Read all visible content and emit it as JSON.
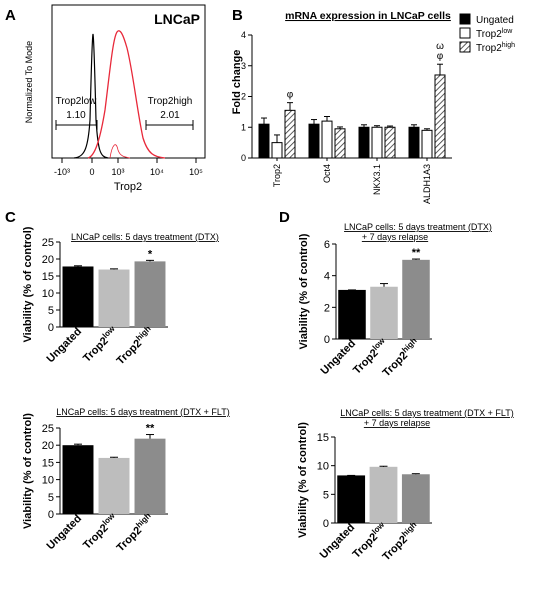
{
  "panels": {
    "A": {
      "letter": "A",
      "label": "LNCaP",
      "ylabel": "Normalized To Mode",
      "xlabel": "Trop2",
      "x_ticks": [
        "-10³",
        "0",
        "10³",
        "10⁴",
        "10⁵"
      ],
      "gates": [
        {
          "name": "Trop2low",
          "value": "1.10"
        },
        {
          "name": "Trop2high",
          "value": "2.01"
        }
      ]
    },
    "B": {
      "letter": "B",
      "title": "mRNA expression in LNCaP cells",
      "ylabel": "Fold change"
    },
    "C": {
      "letter": "C"
    },
    "D": {
      "letter": "D"
    }
  },
  "legend": {
    "base": [
      "Ungated",
      "Trop2",
      "Trop2"
    ],
    "sup": [
      "",
      "low",
      "high"
    ]
  },
  "bar_labels": {
    "base": [
      "Ungated",
      "Trop2",
      "Trop2"
    ],
    "sup": [
      "",
      "low",
      "high"
    ]
  },
  "colors": {
    "ungated": "#000000",
    "trop2low": "#ffffff",
    "trop2high_hatch": "#444444",
    "c_ungated": "#000000",
    "c_low": "#bdbdbd",
    "c_high": "#8c8c8c",
    "histogram_low": "#000000",
    "histogram_high": "#e8293a"
  },
  "chart_data": [
    {
      "id": "A",
      "type": "area",
      "title": "",
      "xlabel": "Trop2",
      "ylabel": "Normalized To Mode",
      "x_scale": "biexponential",
      "series": [
        {
          "name": "Trop2low",
          "x": [
            -300,
            -60,
            -20,
            0,
            20,
            60,
            200
          ],
          "y": [
            0,
            5,
            40,
            96,
            40,
            5,
            0
          ]
        },
        {
          "name": "Trop2high",
          "x": [
            -100,
            100,
            300,
            600,
            900,
            1200,
            2000,
            4000,
            8000,
            15000
          ],
          "y": [
            0,
            5,
            35,
            80,
            95,
            88,
            60,
            25,
            5,
            0
          ]
        }
      ],
      "annotations": [
        {
          "text": "Trop2low",
          "value": 1.1
        },
        {
          "text": "Trop2high",
          "value": 2.01
        }
      ]
    },
    {
      "id": "B",
      "type": "bar",
      "title": "mRNA expression in LNCaP cells",
      "categories": [
        "Trop2",
        "Oct4",
        "NKX3.1",
        "ALDH1A3"
      ],
      "series": [
        {
          "name": "Ungated",
          "values": [
            1.1,
            1.1,
            1.0,
            1.0
          ],
          "errors": [
            0.2,
            0.15,
            0.08,
            0.08
          ]
        },
        {
          "name": "Trop2low",
          "values": [
            0.5,
            1.2,
            1.0,
            0.9
          ],
          "errors": [
            0.25,
            0.15,
            0.05,
            0.05
          ]
        },
        {
          "name": "Trop2high",
          "values": [
            1.55,
            0.95,
            1.0,
            2.7
          ],
          "errors": [
            0.25,
            0.06,
            0.04,
            0.35
          ]
        }
      ],
      "ylabel": "Fold change",
      "ylim": [
        0,
        4
      ],
      "yticks": [
        0,
        1,
        2,
        3,
        4
      ],
      "significance": [
        {
          "category": "Trop2",
          "series": "Trop2high",
          "mark": "φ"
        },
        {
          "category": "ALDH1A3",
          "series": "Trop2high",
          "mark": "ω\nφ"
        }
      ]
    },
    {
      "id": "C1",
      "type": "bar",
      "title": "LNCaP cells: 5 days treatment (DTX)",
      "categories": [
        "Ungated",
        "Trop2low",
        "Trop2high"
      ],
      "values": [
        17.8,
        16.9,
        19.3
      ],
      "errors": [
        0.2,
        0.2,
        0.3
      ],
      "ylabel": "Viability (% of control)",
      "ylim": [
        0,
        25
      ],
      "yticks": [
        0,
        5,
        10,
        15,
        20,
        25
      ],
      "significance": [
        {
          "category": "Trop2high",
          "mark": "*"
        }
      ]
    },
    {
      "id": "C2",
      "type": "bar",
      "title": "LNCaP cells: 5 days treatment (DTX + FLT)",
      "categories": [
        "Ungated",
        "Trop2low",
        "Trop2high"
      ],
      "values": [
        20.0,
        16.3,
        21.9
      ],
      "errors": [
        0.3,
        0.2,
        1.2
      ],
      "ylabel": "Viability (% of control)",
      "ylim": [
        0,
        25
      ],
      "yticks": [
        0,
        5,
        10,
        15,
        20,
        25
      ],
      "significance": [
        {
          "category": "Trop2high",
          "mark": "**"
        }
      ]
    },
    {
      "id": "D1",
      "type": "bar",
      "title": "LNCaP cells: 5 days treatment (DTX)",
      "subtitle": "+ 7 days relapse",
      "categories": [
        "Ungated",
        "Trop2low",
        "Trop2high"
      ],
      "values": [
        3.1,
        3.3,
        5.0
      ],
      "errors": [
        0.0,
        0.2,
        0.05
      ],
      "ylabel": "Viability (% of control)",
      "ylim": [
        0,
        6
      ],
      "yticks": [
        0,
        2,
        4,
        6
      ],
      "significance": [
        {
          "category": "Trop2high",
          "mark": "**"
        }
      ]
    },
    {
      "id": "D2",
      "type": "bar",
      "title": "LNCaP cells: 5 days treatment (DTX + FLT)",
      "subtitle": "+ 7 days relapse",
      "categories": [
        "Ungated",
        "Trop2low",
        "Trop2high"
      ],
      "values": [
        8.3,
        9.8,
        8.5
      ],
      "errors": [
        0.0,
        0.1,
        0.1
      ],
      "ylabel": "Viability (% of control)",
      "ylim": [
        0,
        15
      ],
      "yticks": [
        0,
        5,
        10,
        15
      ],
      "significance": []
    }
  ]
}
